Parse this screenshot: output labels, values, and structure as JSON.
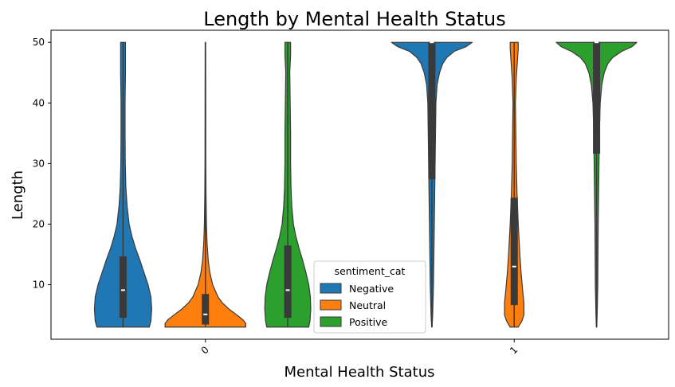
{
  "chart_data": {
    "type": "violin",
    "title": "Length by Mental Health Status",
    "xlabel": "Mental Health Status",
    "ylabel": "Length",
    "categories": [
      "0",
      "1"
    ],
    "ylim": [
      1.0,
      52.0
    ],
    "yticks": [
      10,
      20,
      30,
      40,
      50
    ],
    "grid": false,
    "legend": {
      "title": "sentiment_cat",
      "placement": "lower-center",
      "entries": [
        "Negative",
        "Neutral",
        "Positive"
      ]
    },
    "series": [
      {
        "name": "Negative",
        "color": "#1f77b4",
        "groups": [
          {
            "category": "0",
            "min": 3,
            "max": 50,
            "q1": 4.6,
            "median": 9.1,
            "q3": 14.6,
            "density": [
              [
                3,
                0.65
              ],
              [
                4,
                0.69
              ],
              [
                6,
                0.71
              ],
              [
                8,
                0.69
              ],
              [
                10,
                0.62
              ],
              [
                12,
                0.52
              ],
              [
                14,
                0.42
              ],
              [
                16,
                0.31
              ],
              [
                18,
                0.22
              ],
              [
                20,
                0.15
              ],
              [
                23,
                0.1
              ],
              [
                26,
                0.07
              ],
              [
                30,
                0.055
              ],
              [
                35,
                0.05
              ],
              [
                40,
                0.05
              ],
              [
                45,
                0.06
              ],
              [
                48,
                0.06
              ],
              [
                50,
                0.06
              ]
            ]
          },
          {
            "category": "1",
            "min": 3,
            "max": 50,
            "q1": 27.5,
            "median": 50,
            "q3": 50,
            "density": [
              [
                3,
                0.0
              ],
              [
                5,
                0.02
              ],
              [
                10,
                0.04
              ],
              [
                15,
                0.05
              ],
              [
                20,
                0.06
              ],
              [
                25,
                0.07
              ],
              [
                30,
                0.08
              ],
              [
                35,
                0.09
              ],
              [
                40,
                0.1
              ],
              [
                43,
                0.13
              ],
              [
                45,
                0.19
              ],
              [
                46.5,
                0.27
              ],
              [
                47.5,
                0.37
              ],
              [
                48.5,
                0.55
              ],
              [
                49.3,
                0.85
              ],
              [
                50,
                1.0
              ]
            ]
          }
        ]
      },
      {
        "name": "Neutral",
        "color": "#ff7f0e",
        "groups": [
          {
            "category": "0",
            "min": 3,
            "max": 50,
            "q1": 3.5,
            "median": 5.1,
            "q3": 8.4,
            "density": [
              [
                3,
                1.0
              ],
              [
                3.6,
                1.0
              ],
              [
                4.2,
                0.93
              ],
              [
                5,
                0.78
              ],
              [
                6,
                0.58
              ],
              [
                7,
                0.42
              ],
              [
                8,
                0.31
              ],
              [
                10,
                0.18
              ],
              [
                12,
                0.11
              ],
              [
                14,
                0.07
              ],
              [
                17,
                0.04
              ],
              [
                20,
                0.025
              ],
              [
                25,
                0.015
              ],
              [
                30,
                0.01
              ],
              [
                40,
                0.008
              ],
              [
                50,
                0.006
              ]
            ]
          },
          {
            "category": "1",
            "min": 3,
            "max": 50,
            "q1": 6.7,
            "median": 13,
            "q3": 24.3,
            "density": [
              [
                3,
                0.1
              ],
              [
                4,
                0.19
              ],
              [
                5,
                0.24
              ],
              [
                7,
                0.24
              ],
              [
                9,
                0.21
              ],
              [
                12,
                0.17
              ],
              [
                15,
                0.14
              ],
              [
                20,
                0.1
              ],
              [
                25,
                0.07
              ],
              [
                30,
                0.05
              ],
              [
                35,
                0.04
              ],
              [
                40,
                0.03
              ],
              [
                44,
                0.05
              ],
              [
                47,
                0.08
              ],
              [
                49,
                0.1
              ],
              [
                50,
                0.1
              ]
            ]
          }
        ]
      },
      {
        "name": "Positive",
        "color": "#2ca02c",
        "groups": [
          {
            "category": "0",
            "min": 3,
            "max": 50,
            "q1": 4.6,
            "median": 9.1,
            "q3": 16.4,
            "density": [
              [
                3,
                0.52
              ],
              [
                4,
                0.55
              ],
              [
                6,
                0.57
              ],
              [
                8,
                0.56
              ],
              [
                10,
                0.52
              ],
              [
                12,
                0.45
              ],
              [
                14,
                0.37
              ],
              [
                16,
                0.28
              ],
              [
                18,
                0.2
              ],
              [
                20,
                0.14
              ],
              [
                23,
                0.1
              ],
              [
                26,
                0.08
              ],
              [
                30,
                0.07
              ],
              [
                35,
                0.07
              ],
              [
                40,
                0.06
              ],
              [
                45,
                0.05
              ],
              [
                48,
                0.07
              ],
              [
                50,
                0.07
              ]
            ]
          },
          {
            "category": "1",
            "min": 3,
            "max": 50,
            "q1": 31.7,
            "median": 50,
            "q3": 50,
            "density": [
              [
                3,
                0.0
              ],
              [
                5,
                0.015
              ],
              [
                10,
                0.03
              ],
              [
                15,
                0.035
              ],
              [
                20,
                0.04
              ],
              [
                25,
                0.05
              ],
              [
                30,
                0.06
              ],
              [
                35,
                0.07
              ],
              [
                40,
                0.09
              ],
              [
                43,
                0.13
              ],
              [
                45,
                0.19
              ],
              [
                46.5,
                0.28
              ],
              [
                47.5,
                0.4
              ],
              [
                48.5,
                0.62
              ],
              [
                49.3,
                0.88
              ],
              [
                50,
                1.0
              ]
            ]
          }
        ]
      }
    ]
  }
}
